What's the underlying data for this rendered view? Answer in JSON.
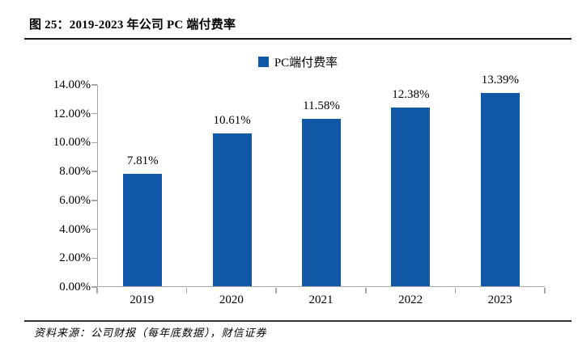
{
  "header": {
    "title": "图 25：2019-2023 年公司 PC 端付费率"
  },
  "chart_data": {
    "type": "bar",
    "title": "图 25：2019-2023 年公司 PC 端付费率",
    "legend_entries": [
      "PC端付费率"
    ],
    "legend_position": "top-center",
    "categories": [
      "2019",
      "2020",
      "2021",
      "2022",
      "2023"
    ],
    "series": [
      {
        "name": "PC端付费率",
        "values": [
          7.81,
          10.61,
          11.58,
          12.38,
          13.39
        ],
        "data_labels": [
          "7.81%",
          "10.61%",
          "11.58%",
          "12.38%",
          "13.39%"
        ]
      }
    ],
    "ylabel": "",
    "xlabel": "",
    "ylim": [
      0,
      14
    ],
    "ytick_step": 2,
    "ytick_labels": [
      "0.00%",
      "2.00%",
      "4.00%",
      "6.00%",
      "8.00%",
      "10.00%",
      "12.00%",
      "14.00%"
    ],
    "grid": false,
    "bar_color": "#1158a6",
    "axis_color": "#a6a6a6"
  },
  "footer": {
    "source": "资料来源：公司财报（每年底数据），财信证券"
  }
}
